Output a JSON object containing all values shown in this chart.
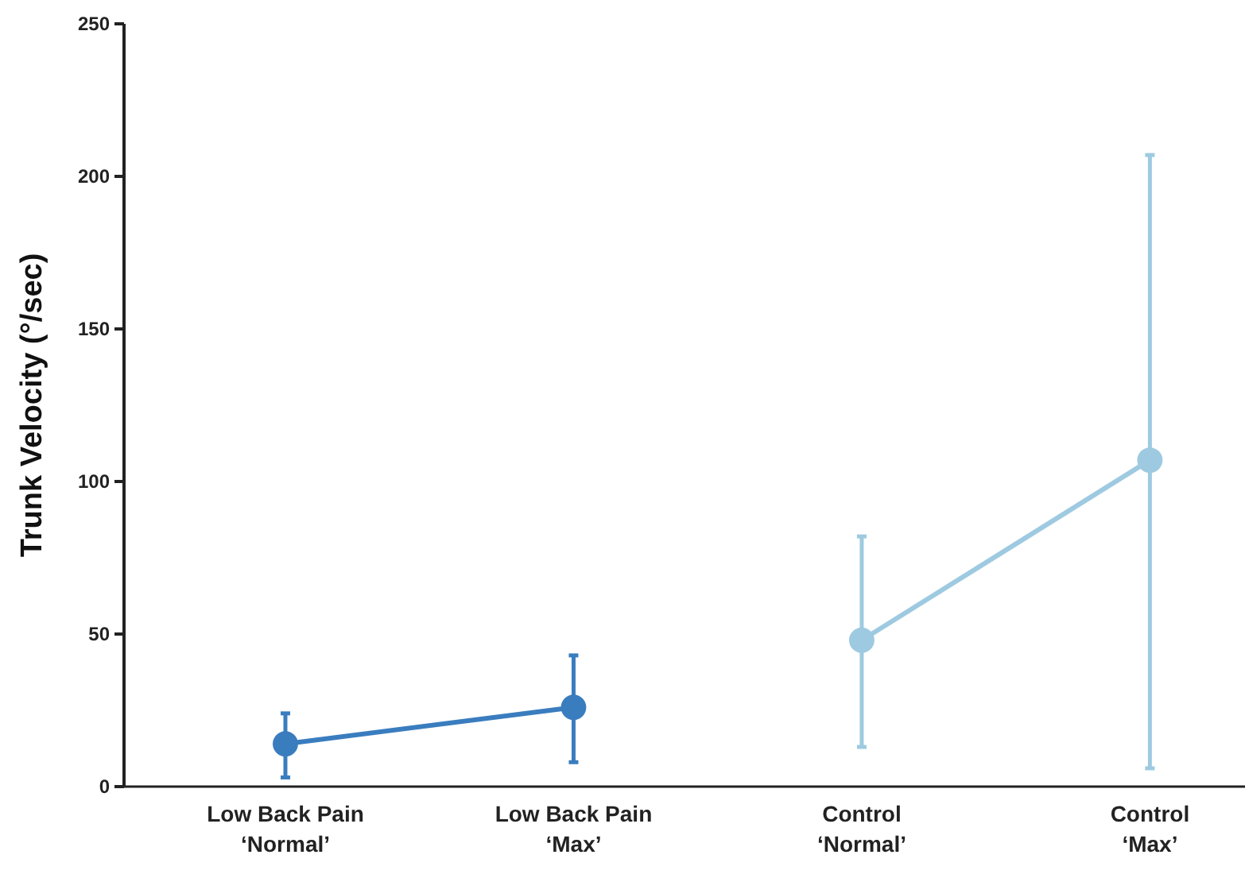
{
  "chart_data": {
    "type": "line",
    "ylabel": "Trunk Velocity (°/sec)",
    "categories": [
      "Low Back Pain\n‘Normal’",
      "Low Back Pain\n‘Max’",
      "Control\n‘Normal’",
      "Control\n‘Max’"
    ],
    "series": [
      {
        "color": "#3a7dbf",
        "values": [
          14,
          26,
          null,
          null
        ],
        "errors": [
          [
            3,
            24
          ],
          [
            8,
            43
          ],
          null,
          null
        ]
      },
      {
        "color": "#9ecae1",
        "values": [
          null,
          null,
          48,
          107
        ],
        "errors": [
          null,
          null,
          [
            13,
            82
          ],
          [
            6,
            207
          ]
        ]
      }
    ],
    "ylim": [
      0,
      250
    ],
    "yticks": [
      0,
      50,
      100,
      150,
      200,
      250
    ],
    "marker": "circle",
    "line_style": "solid"
  }
}
